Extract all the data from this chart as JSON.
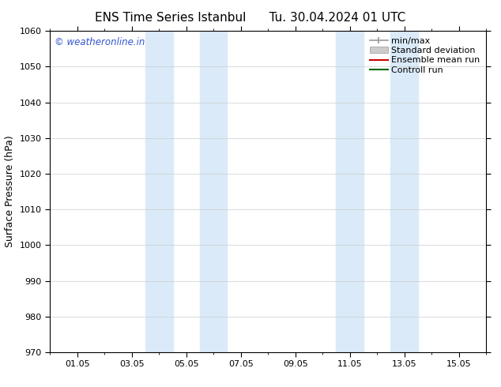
{
  "title_left": "ENS Time Series Istanbul",
  "title_right": "Tu. 30.04.2024 01 UTC",
  "ylabel": "Surface Pressure (hPa)",
  "xlim": [
    0,
    16
  ],
  "ylim": [
    970,
    1060
  ],
  "yticks": [
    970,
    980,
    990,
    1000,
    1010,
    1020,
    1030,
    1040,
    1050,
    1060
  ],
  "xtick_labels": [
    "01.05",
    "03.05",
    "05.05",
    "07.05",
    "09.05",
    "11.05",
    "13.05",
    "15.05"
  ],
  "xtick_positions": [
    1,
    3,
    5,
    7,
    9,
    11,
    13,
    15
  ],
  "shaded_bands": [
    {
      "xmin": 3.5,
      "xmax": 4.5
    },
    {
      "xmin": 5.5,
      "xmax": 6.5
    },
    {
      "xmin": 10.5,
      "xmax": 11.5
    },
    {
      "xmin": 12.5,
      "xmax": 13.5
    }
  ],
  "shade_color": "#daeaf8",
  "watermark": "© weatheronline.in",
  "watermark_color": "#3355cc",
  "legend_labels": [
    "min/max",
    "Standard deviation",
    "Ensemble mean run",
    "Controll run"
  ],
  "background_color": "#ffffff",
  "grid_color": "#cccccc",
  "title_fontsize": 11,
  "ylabel_fontsize": 9,
  "tick_fontsize": 8,
  "legend_fontsize": 8
}
